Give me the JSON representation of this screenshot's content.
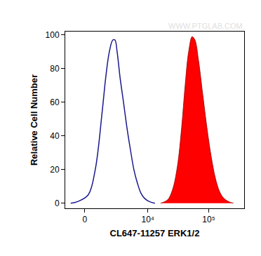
{
  "chart_data": {
    "type": "histogram",
    "x_label": "CL647-11257 ERK1/2",
    "y_label": "Relative Cell Number",
    "annotations": [
      "WWW.PTGLAB.COM"
    ],
    "xlim": [
      -1500,
      380000
    ],
    "xticks": [
      0,
      {
        "value": 10000,
        "label": "10⁴"
      },
      {
        "value": 100000,
        "label": "10⁵"
      }
    ],
    "ylim": [
      -3,
      102
    ],
    "yticks": [
      0,
      20,
      40,
      60,
      80,
      100
    ],
    "grid": false,
    "series": [
      {
        "type": "line",
        "color": "#1a1a8c",
        "x": [
          -1036,
          -501,
          248,
          761,
          1328,
          1644,
          1992,
          2369,
          2620,
          2893,
          3284,
          3813,
          4393,
          5053,
          5810,
          6670,
          7656,
          8770,
          10580,
          13110
        ],
        "values": [
          0,
          1,
          5,
          20,
          55,
          75,
          90,
          97,
          97,
          90,
          75,
          60,
          45,
          32,
          20,
          12,
          6,
          3,
          1,
          0
        ]
      },
      {
        "type": "area",
        "color": "#ff0000",
        "x": [
          16230,
          21170,
          25490,
          30690,
          36000,
          41080,
          46880,
          53540,
          59470,
          67960,
          79570,
          93310,
          109400,
          128300,
          150200,
          176000,
          211700,
          254700
        ],
        "values": [
          0,
          2,
          8,
          22,
          45,
          70,
          90,
          99,
          97,
          85,
          65,
          45,
          28,
          15,
          7,
          3,
          1,
          0
        ]
      }
    ]
  }
}
